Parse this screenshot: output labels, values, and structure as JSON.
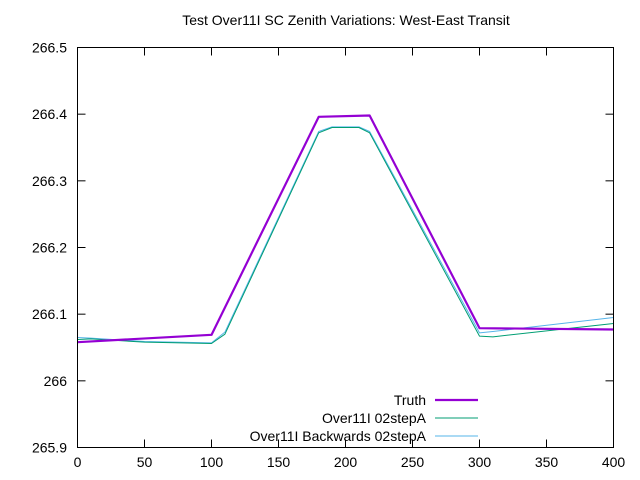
{
  "chart_data": {
    "type": "line",
    "title": "Test Over11I SC Zenith Variations: West-East Transit",
    "xlabel": "",
    "ylabel": "",
    "xlim": [
      0,
      400
    ],
    "ylim": [
      265.9,
      266.5
    ],
    "x_ticks": [
      0,
      50,
      100,
      150,
      200,
      250,
      300,
      350,
      400
    ],
    "x_tick_labels": [
      "0",
      "50",
      "100",
      "150",
      "200",
      "250",
      "300",
      "350",
      "400"
    ],
    "y_ticks": [
      265.9,
      266.0,
      266.1,
      266.2,
      266.3,
      266.4,
      266.5
    ],
    "y_tick_labels": [
      "265.9",
      "266",
      "266.1",
      "266.2",
      "266.3",
      "266.4",
      "266.5"
    ],
    "grid": false,
    "legend_position": "bottom-right",
    "series": [
      {
        "name": "Truth",
        "color": "#9400d3",
        "x": [
          0,
          100,
          180,
          218,
          300,
          400
        ],
        "y": [
          266.058,
          266.069,
          266.396,
          266.398,
          266.079,
          266.077
        ]
      },
      {
        "name": "Over11I 02stepA",
        "color": "#009e73",
        "x": [
          0,
          10,
          50,
          100,
          110,
          180,
          190,
          210,
          218,
          300,
          310,
          400
        ],
        "y": [
          266.062,
          266.063,
          266.058,
          266.056,
          266.07,
          266.372,
          266.38,
          266.38,
          266.372,
          266.067,
          266.066,
          266.086
        ]
      },
      {
        "name": "Over11I Backwards 02stepA",
        "color": "#56b4e9",
        "x": [
          0,
          10,
          50,
          100,
          110,
          180,
          190,
          210,
          218,
          300,
          310,
          400
        ],
        "y": [
          266.065,
          266.064,
          266.059,
          266.057,
          266.073,
          266.374,
          266.381,
          266.381,
          266.374,
          266.072,
          266.074,
          266.095
        ]
      }
    ]
  }
}
